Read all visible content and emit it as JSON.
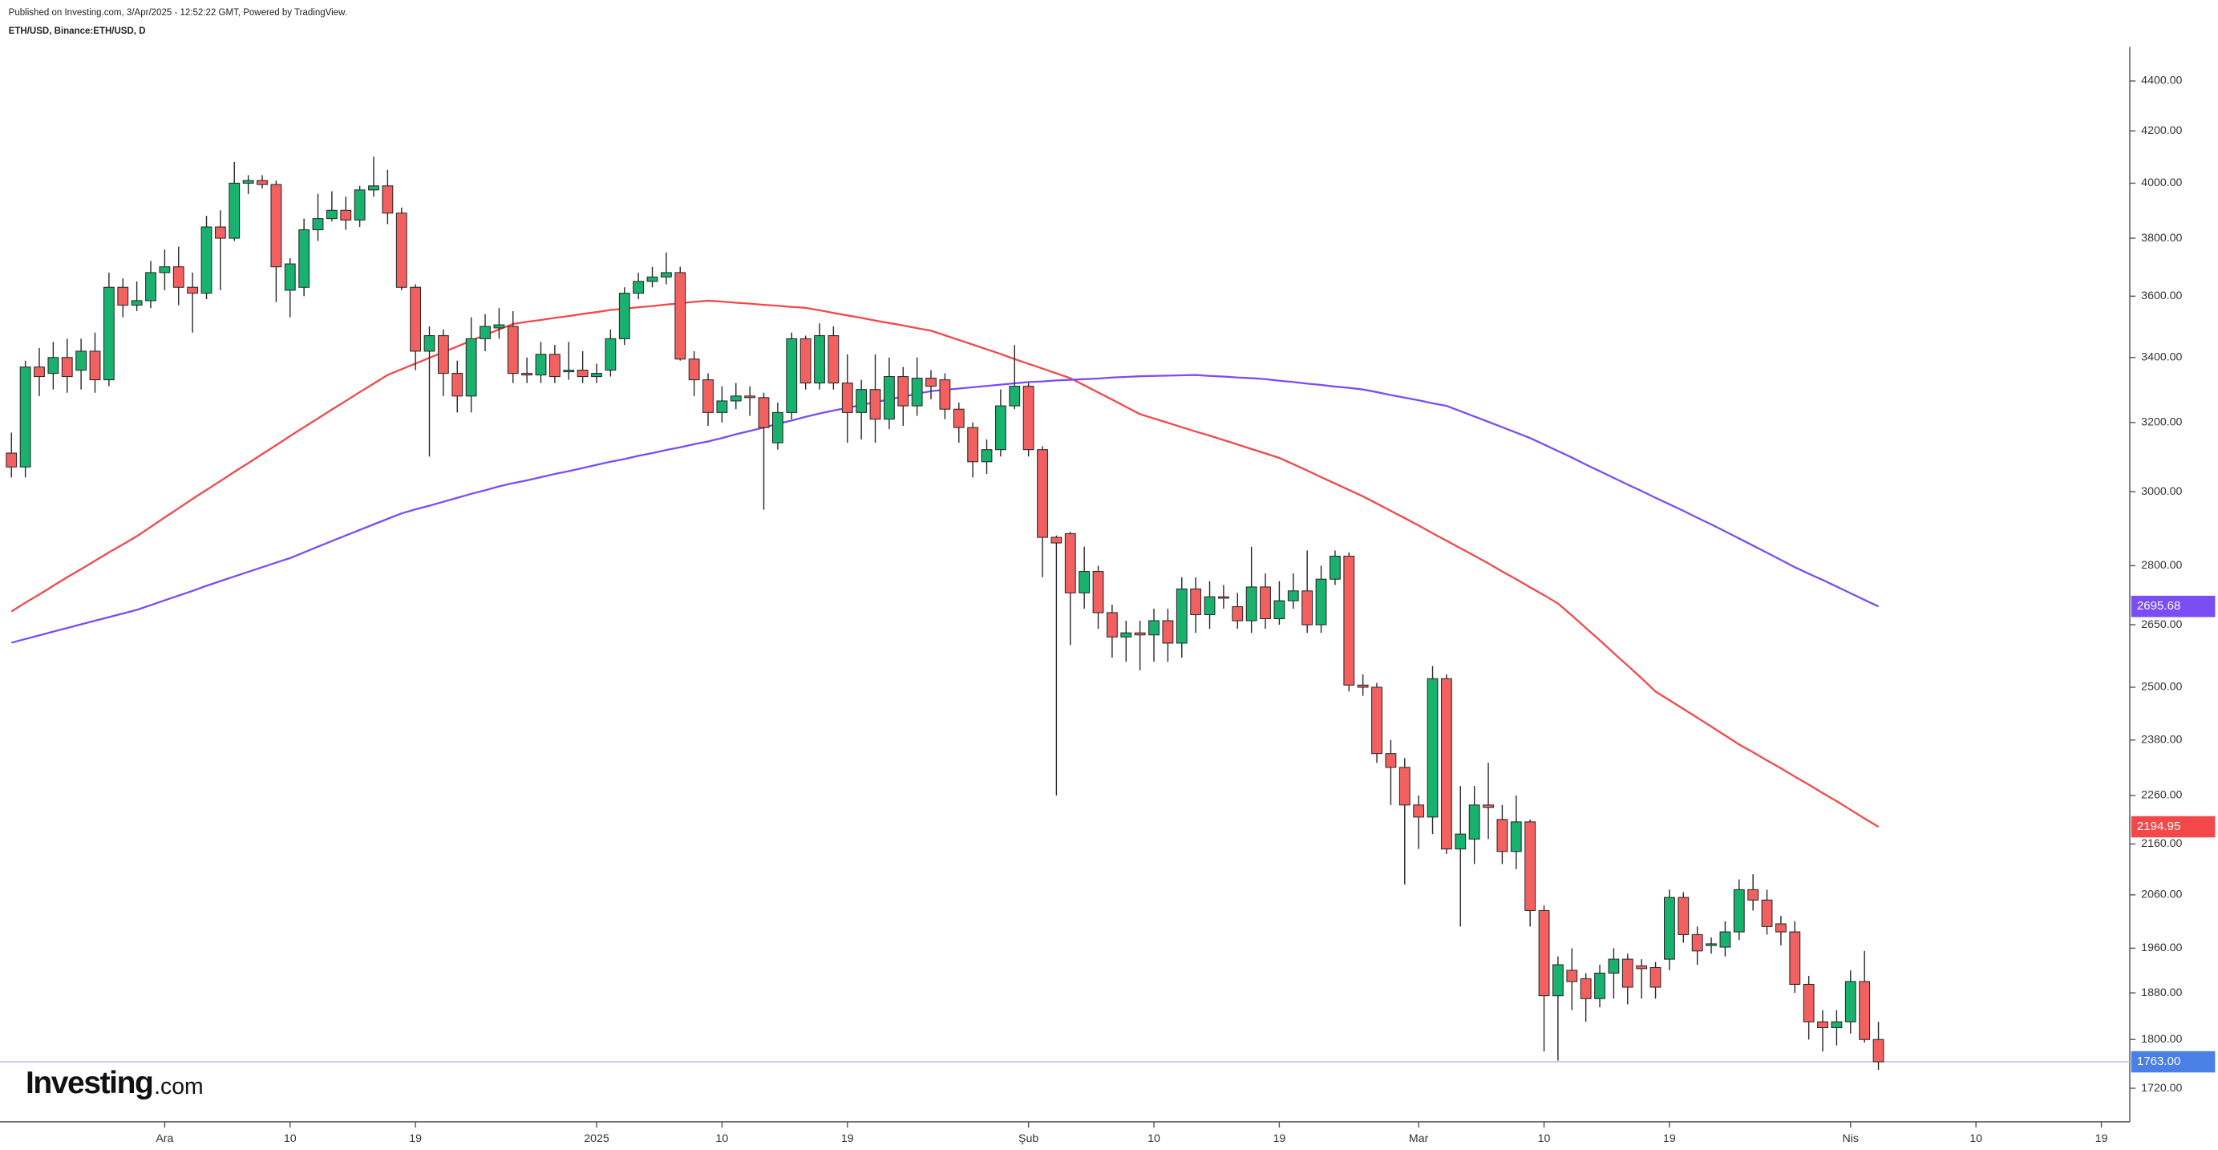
{
  "chart_data": {
    "type": "candlestick",
    "published": "Published on Investing.com, 3/Apr/2025 - 12:52:22 GMT, Powered by TradingView.",
    "title": "ETH/USD, Binance:ETH/USD, D",
    "logo": {
      "name": "Investing",
      "suffix": ".com"
    },
    "log_scale": true,
    "grid": false,
    "ylim": [
      1667,
      4542
    ],
    "yticks": [
      {
        "value": 4400,
        "label": "4400.00"
      },
      {
        "value": 4200,
        "label": "4200.00"
      },
      {
        "value": 4000,
        "label": "4000.00"
      },
      {
        "value": 3800,
        "label": "3800.00"
      },
      {
        "value": 3600,
        "label": "3600.00"
      },
      {
        "value": 3400,
        "label": "3400.00"
      },
      {
        "value": 3200,
        "label": "3200.00"
      },
      {
        "value": 3000,
        "label": "3000.00"
      },
      {
        "value": 2800,
        "label": "2800.00"
      },
      {
        "value": 2650,
        "label": "2650.00"
      },
      {
        "value": 2500,
        "label": "2500.00"
      },
      {
        "value": 2380,
        "label": "2380.00"
      },
      {
        "value": 2260,
        "label": "2260.00"
      },
      {
        "value": 2160,
        "label": "2160.00"
      },
      {
        "value": 2060,
        "label": "2060.00"
      },
      {
        "value": 1960,
        "label": "1960.00"
      },
      {
        "value": 1880,
        "label": "1880.00"
      },
      {
        "value": 1800,
        "label": "1800.00"
      },
      {
        "value": 1720,
        "label": "1720.00"
      }
    ],
    "categories": [
      null,
      null,
      null,
      null,
      null,
      null,
      null,
      null,
      null,
      null,
      null,
      "Ara",
      null,
      null,
      null,
      null,
      null,
      null,
      null,
      null,
      "10",
      null,
      null,
      null,
      null,
      null,
      null,
      null,
      null,
      "19",
      null,
      null,
      null,
      null,
      null,
      null,
      null,
      null,
      null,
      null,
      null,
      null,
      "2025",
      null,
      null,
      null,
      null,
      null,
      null,
      null,
      null,
      "10",
      null,
      null,
      null,
      null,
      null,
      null,
      null,
      null,
      "19",
      null,
      null,
      null,
      null,
      null,
      null,
      null,
      null,
      null,
      null,
      null,
      null,
      "Şub",
      null,
      null,
      null,
      null,
      null,
      null,
      null,
      null,
      "10",
      null,
      null,
      null,
      null,
      null,
      null,
      null,
      null,
      "19",
      null,
      null,
      null,
      null,
      null,
      null,
      null,
      null,
      null,
      "Mar",
      null,
      null,
      null,
      null,
      null,
      null,
      null,
      null,
      "10",
      null,
      null,
      null,
      null,
      null,
      null,
      null,
      null,
      "19",
      null,
      null,
      null,
      null,
      null,
      null,
      null,
      null,
      null,
      null,
      null,
      null,
      "Nis",
      null,
      null,
      null,
      null,
      null,
      null,
      null,
      null,
      "10",
      null,
      null,
      null,
      null,
      null,
      null,
      null,
      null,
      "19"
    ],
    "up_color": "#17b26e",
    "down_color": "#f2615f",
    "open": [
      3110,
      3070,
      3370,
      3350,
      3400,
      3360,
      3420,
      3330,
      3630,
      3570,
      3585,
      3680,
      3700,
      3630,
      3610,
      3840,
      3800,
      4000,
      4010,
      3995,
      3620,
      3630,
      3830,
      3870,
      3900,
      3865,
      3975,
      3990,
      3890,
      3630,
      3420,
      3470,
      3350,
      3280,
      3460,
      3495,
      3500,
      3350,
      3345,
      3410,
      3355,
      3360,
      3340,
      3360,
      3460,
      3610,
      3650,
      3665,
      3680,
      3395,
      3330,
      3230,
      3265,
      3280,
      3275,
      3140,
      3230,
      3460,
      3320,
      3470,
      3320,
      3230,
      3300,
      3210,
      3340,
      3250,
      3335,
      3330,
      3240,
      3185,
      3085,
      3120,
      3250,
      3310,
      3120,
      2875,
      2885,
      2730,
      2785,
      2680,
      2620,
      2630,
      2625,
      2660,
      2605,
      2740,
      2675,
      2720,
      2695,
      2660,
      2745,
      2665,
      2710,
      2735,
      2650,
      2765,
      2825,
      2505,
      2500,
      2350,
      2320,
      2240,
      2215,
      2520,
      2150,
      2170,
      2240,
      2210,
      2145,
      2205,
      2030,
      1875,
      1920,
      1905,
      1870,
      1915,
      1940,
      1928,
      1925,
      1940,
      2055,
      1985,
      1965,
      1962,
      1990,
      2070,
      2050,
      2005,
      1990,
      1895,
      1830,
      1820,
      1830,
      1900,
      1800,
      null,
      null,
      null,
      null,
      null,
      null,
      null,
      null,
      null,
      null,
      null,
      null,
      null,
      null,
      null,
      null
    ],
    "high": [
      3170,
      3390,
      3430,
      3450,
      3460,
      3460,
      3480,
      3680,
      3660,
      3650,
      3720,
      3760,
      3770,
      3680,
      3880,
      3900,
      4080,
      4030,
      4030,
      4010,
      3730,
      3870,
      3960,
      3970,
      3950,
      3990,
      4100,
      4050,
      3910,
      3640,
      3500,
      3490,
      3390,
      3530,
      3540,
      3560,
      3550,
      3400,
      3450,
      3440,
      3450,
      3420,
      3380,
      3490,
      3630,
      3680,
      3700,
      3750,
      3700,
      3420,
      3350,
      3310,
      3320,
      3310,
      3290,
      3260,
      3480,
      3470,
      3510,
      3500,
      3410,
      3330,
      3410,
      3400,
      3370,
      3400,
      3360,
      3350,
      3260,
      3200,
      3150,
      3300,
      3440,
      3320,
      3130,
      2880,
      2890,
      2850,
      2800,
      2700,
      2660,
      2660,
      2690,
      2690,
      2770,
      2770,
      2760,
      2750,
      2730,
      2850,
      2780,
      2760,
      2780,
      2840,
      2800,
      2840,
      2835,
      2530,
      2510,
      2380,
      2340,
      2260,
      2550,
      2530,
      2280,
      2280,
      2330,
      2240,
      2260,
      2210,
      2040,
      1945,
      1960,
      1915,
      1930,
      1960,
      1950,
      1940,
      1935,
      2070,
      2065,
      2000,
      1980,
      2010,
      2090,
      2100,
      2070,
      2020,
      2010,
      1910,
      1850,
      1850,
      1920,
      1955,
      1830,
      null,
      null,
      null,
      null,
      null,
      null,
      null,
      null,
      null,
      null,
      null,
      null,
      null,
      null,
      null,
      null
    ],
    "low": [
      3040,
      3040,
      3280,
      3300,
      3290,
      3300,
      3290,
      3310,
      3530,
      3550,
      3560,
      3620,
      3570,
      3480,
      3590,
      3620,
      3790,
      3960,
      3980,
      3580,
      3530,
      3600,
      3790,
      3860,
      3830,
      3840,
      3950,
      3850,
      3620,
      3360,
      3100,
      3280,
      3230,
      3230,
      3420,
      3460,
      3320,
      3320,
      3320,
      3320,
      3330,
      3320,
      3320,
      3340,
      3440,
      3590,
      3630,
      3640,
      3390,
      3280,
      3190,
      3200,
      3240,
      3220,
      2950,
      3120,
      3210,
      3300,
      3300,
      3300,
      3140,
      3150,
      3140,
      3180,
      3190,
      3220,
      3270,
      3210,
      3140,
      3040,
      3050,
      3100,
      3240,
      3100,
      2770,
      2260,
      2600,
      2690,
      2640,
      2570,
      2560,
      2540,
      2560,
      2560,
      2570,
      2630,
      2640,
      2690,
      2640,
      2630,
      2640,
      2650,
      2690,
      2630,
      2630,
      2750,
      2490,
      2480,
      2330,
      2240,
      2080,
      2150,
      2180,
      2140,
      2000,
      2120,
      2170,
      2120,
      2110,
      2000,
      1780,
      1765,
      1850,
      1830,
      1855,
      1870,
      1860,
      1870,
      1870,
      1920,
      1970,
      1930,
      1950,
      1945,
      1975,
      2030,
      1985,
      1965,
      1880,
      1800,
      1780,
      1790,
      1810,
      1795,
      1750,
      null,
      null,
      null,
      null,
      null,
      null,
      null,
      null,
      null,
      null,
      null,
      null,
      null,
      null,
      null,
      null
    ],
    "close": [
      3070,
      3370,
      3340,
      3400,
      3340,
      3420,
      3330,
      3630,
      3570,
      3585,
      3680,
      3700,
      3630,
      3610,
      3840,
      3800,
      4000,
      4010,
      3995,
      3700,
      3710,
      3830,
      3870,
      3900,
      3865,
      3975,
      3990,
      3890,
      3630,
      3420,
      3470,
      3350,
      3280,
      3460,
      3500,
      3505,
      3350,
      3345,
      3410,
      3340,
      3360,
      3340,
      3350,
      3460,
      3610,
      3650,
      3665,
      3680,
      3395,
      3330,
      3230,
      3265,
      3280,
      3275,
      3185,
      3230,
      3460,
      3320,
      3470,
      3320,
      3230,
      3300,
      3210,
      3340,
      3250,
      3335,
      3310,
      3240,
      3185,
      3085,
      3120,
      3250,
      3310,
      3120,
      2875,
      2860,
      2730,
      2785,
      2680,
      2620,
      2630,
      2625,
      2660,
      2605,
      2740,
      2675,
      2720,
      2718,
      2660,
      2745,
      2665,
      2710,
      2735,
      2650,
      2765,
      2825,
      2505,
      2500,
      2350,
      2320,
      2240,
      2215,
      2520,
      2150,
      2180,
      2240,
      2235,
      2145,
      2205,
      2030,
      1875,
      1930,
      1900,
      1870,
      1915,
      1940,
      1890,
      1923,
      1890,
      2055,
      1985,
      1955,
      1968,
      1990,
      2070,
      2050,
      2000,
      1990,
      1895,
      1830,
      1820,
      1830,
      1900,
      1800,
      1763,
      null,
      null,
      null,
      null,
      null,
      null,
      null,
      null,
      null,
      null,
      null,
      null,
      null,
      null,
      null,
      null
    ],
    "series": [
      {
        "color": "#f2484a",
        "values": [
          2683,
          2705,
          2726,
          2748,
          2770,
          2791,
          2813,
          2835,
          2856,
          2878,
          2903,
          2929,
          2954,
          2980,
          3005,
          3030,
          3056,
          3081,
          3107,
          3133,
          3160,
          3186,
          3212,
          3239,
          3265,
          3292,
          3318,
          3345,
          3363,
          3381,
          3399,
          3417,
          3435,
          3454,
          3472,
          3490,
          3508,
          3515,
          3521,
          3528,
          3534,
          3541,
          3547,
          3554,
          3558,
          3563,
          3567,
          3572,
          3576,
          3581,
          3585,
          3582,
          3578,
          3575,
          3571,
          3568,
          3564,
          3561,
          3553,
          3544,
          3536,
          3528,
          3519,
          3511,
          3503,
          3494,
          3486,
          3471,
          3456,
          3441,
          3426,
          3411,
          3395,
          3380,
          3365,
          3350,
          3335,
          3313,
          3291,
          3269,
          3247,
          3225,
          3212,
          3199,
          3186,
          3173,
          3161,
          3148,
          3135,
          3122,
          3109,
          3096,
          3078,
          3060,
          3041,
          3023,
          3005,
          2987,
          2967,
          2947,
          2927,
          2907,
          2886,
          2866,
          2846,
          2826,
          2806,
          2785,
          2765,
          2744,
          2724,
          2703,
          2673,
          2642,
          2612,
          2581,
          2551,
          2521,
          2490,
          2470,
          2450,
          2430,
          2410,
          2390,
          2370,
          2353,
          2335,
          2318,
          2300,
          2283,
          2265,
          2248,
          2230,
          2212,
          2194.95,
          null,
          null,
          null,
          null,
          null,
          null,
          null,
          null,
          null,
          null,
          null,
          null,
          null,
          null,
          null,
          null
        ]
      },
      {
        "color": "#7a4df5",
        "values": [
          2606,
          2615,
          2624,
          2633,
          2642,
          2651,
          2660,
          2669,
          2678,
          2687,
          2699,
          2711,
          2723,
          2735,
          2748,
          2760,
          2772,
          2784,
          2796,
          2808,
          2820,
          2835,
          2850,
          2865,
          2880,
          2895,
          2910,
          2925,
          2940,
          2951,
          2961,
          2972,
          2983,
          2994,
          3004,
          3015,
          3024,
          3032,
          3041,
          3050,
          3058,
          3067,
          3076,
          3085,
          3093,
          3102,
          3110,
          3119,
          3127,
          3136,
          3144,
          3154,
          3165,
          3175,
          3185,
          3196,
          3206,
          3217,
          3227,
          3236,
          3244,
          3253,
          3261,
          3270,
          3278,
          3287,
          3295,
          3299,
          3303,
          3307,
          3311,
          3315,
          3319,
          3323,
          3325,
          3328,
          3330,
          3332,
          3334,
          3337,
          3339,
          3341,
          3342,
          3343,
          3344,
          3345,
          3342,
          3340,
          3337,
          3335,
          3332,
          3327,
          3323,
          3318,
          3314,
          3309,
          3305,
          3300,
          3292,
          3283,
          3275,
          3267,
          3258,
          3250,
          3234,
          3218,
          3202,
          3186,
          3170,
          3154,
          3135,
          3116,
          3097,
          3077,
          3058,
          3039,
          3020,
          3002,
          2983,
          2965,
          2947,
          2928,
          2910,
          2891,
          2872,
          2853,
          2834,
          2815,
          2796,
          2779,
          2763,
          2746,
          2729,
          2712,
          2695.68,
          null,
          null,
          null,
          null,
          null,
          null,
          null,
          null,
          null,
          null,
          null,
          null,
          null,
          null,
          null,
          null
        ]
      }
    ],
    "last_price": {
      "value": 1763,
      "label": "1763.00",
      "color": "#4a7fe6"
    }
  }
}
